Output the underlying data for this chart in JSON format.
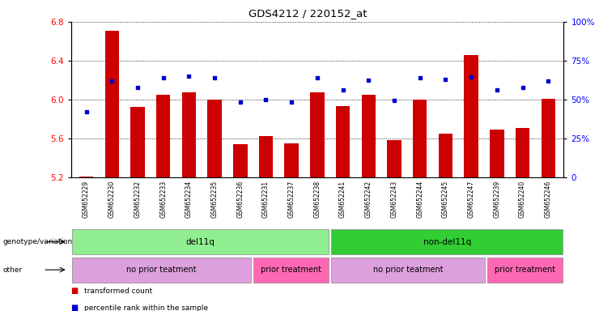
{
  "title": "GDS4212 / 220152_at",
  "samples": [
    "GSM652229",
    "GSM652230",
    "GSM652232",
    "GSM652233",
    "GSM652234",
    "GSM652235",
    "GSM652236",
    "GSM652231",
    "GSM652237",
    "GSM652238",
    "GSM652241",
    "GSM652242",
    "GSM652243",
    "GSM652244",
    "GSM652245",
    "GSM652247",
    "GSM652239",
    "GSM652240",
    "GSM652246"
  ],
  "red_values": [
    5.21,
    6.71,
    5.92,
    6.05,
    6.07,
    6.0,
    5.54,
    5.62,
    5.55,
    6.07,
    5.93,
    6.05,
    5.58,
    6.0,
    5.65,
    6.46,
    5.69,
    5.71,
    6.01
  ],
  "blue_values": [
    5.87,
    6.19,
    6.12,
    6.22,
    6.24,
    6.22,
    5.97,
    6.0,
    5.97,
    6.22,
    6.1,
    6.2,
    5.99,
    6.22,
    6.21,
    6.23,
    6.1,
    6.12,
    6.19
  ],
  "ylim_left": [
    5.2,
    6.8
  ],
  "ylim_right": [
    0,
    100
  ],
  "y_ticks_left": [
    5.2,
    5.6,
    6.0,
    6.4,
    6.8
  ],
  "y_ticks_right": [
    0,
    25,
    50,
    75,
    100
  ],
  "base": 5.2,
  "genotype_groups": [
    {
      "label": "del11q",
      "start": 0,
      "end": 10,
      "color": "#90EE90"
    },
    {
      "label": "non-del11q",
      "start": 10,
      "end": 19,
      "color": "#32CD32"
    }
  ],
  "other_groups": [
    {
      "label": "no prior teatment",
      "start": 0,
      "end": 7,
      "color": "#DDA0DD"
    },
    {
      "label": "prior treatment",
      "start": 7,
      "end": 10,
      "color": "#FF69B4"
    },
    {
      "label": "no prior teatment",
      "start": 10,
      "end": 16,
      "color": "#DDA0DD"
    },
    {
      "label": "prior treatment",
      "start": 16,
      "end": 19,
      "color": "#FF69B4"
    }
  ],
  "bar_color": "#CC0000",
  "blue_color": "#0000CC",
  "legend_items": [
    {
      "label": "transformed count",
      "color": "#CC0000"
    },
    {
      "label": "percentile rank within the sample",
      "color": "#0000CC"
    }
  ]
}
